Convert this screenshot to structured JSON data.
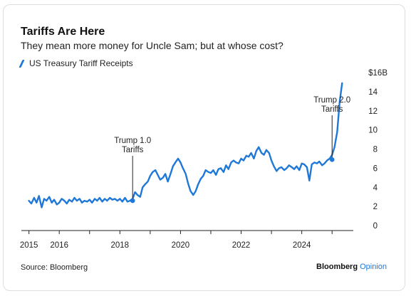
{
  "title": "Tariffs Are Here",
  "subtitle": "They mean more money for Uncle Sam; but at whose cost?",
  "source": "Source: Bloomberg",
  "brand": {
    "name": "Bloomberg",
    "suffix": "Opinion"
  },
  "colors": {
    "line": "#1f78d8",
    "axis": "#222222"
  },
  "chart_data": {
    "type": "line",
    "title": "Tariffs Are Here",
    "subtitle": "They mean more money for Uncle Sam; but at whose cost?",
    "xlabel": "",
    "ylabel": "",
    "y_unit_label": "$16B",
    "xlim": [
      2014.75,
      2025.7
    ],
    "ylim": [
      0,
      16
    ],
    "x_ticks": [
      2015,
      2016,
      2018,
      2020,
      2022,
      2024
    ],
    "x_tick_labels": [
      "2015",
      "2016",
      "2018",
      "2020",
      "2022",
      "2024"
    ],
    "y_ticks": [
      0,
      2,
      4,
      6,
      8,
      10,
      12,
      14
    ],
    "y_tick_labels": [
      "0",
      "2",
      "4",
      "6",
      "8",
      "10",
      "12",
      "14"
    ],
    "grid": false,
    "legend_position": "top-left",
    "series": [
      {
        "name": "US Treasury Tariff Receipts",
        "x": [
          2015.0,
          2015.08,
          2015.17,
          2015.25,
          2015.33,
          2015.42,
          2015.5,
          2015.58,
          2015.67,
          2015.75,
          2015.83,
          2015.92,
          2016.0,
          2016.08,
          2016.17,
          2016.25,
          2016.33,
          2016.42,
          2016.5,
          2016.58,
          2016.67,
          2016.75,
          2016.83,
          2016.92,
          2017.0,
          2017.08,
          2017.17,
          2017.25,
          2017.33,
          2017.42,
          2017.5,
          2017.58,
          2017.67,
          2017.75,
          2017.83,
          2017.92,
          2018.0,
          2018.08,
          2018.17,
          2018.25,
          2018.33,
          2018.42,
          2018.5,
          2018.58,
          2018.67,
          2018.75,
          2018.83,
          2018.92,
          2019.0,
          2019.08,
          2019.17,
          2019.25,
          2019.33,
          2019.42,
          2019.5,
          2019.58,
          2019.67,
          2019.75,
          2019.83,
          2019.92,
          2020.0,
          2020.08,
          2020.17,
          2020.25,
          2020.33,
          2020.42,
          2020.5,
          2020.58,
          2020.67,
          2020.75,
          2020.83,
          2020.92,
          2021.0,
          2021.08,
          2021.17,
          2021.25,
          2021.33,
          2021.42,
          2021.5,
          2021.58,
          2021.67,
          2021.75,
          2021.83,
          2021.92,
          2022.0,
          2022.08,
          2022.17,
          2022.25,
          2022.33,
          2022.42,
          2022.5,
          2022.58,
          2022.67,
          2022.75,
          2022.83,
          2022.92,
          2023.0,
          2023.08,
          2023.17,
          2023.25,
          2023.33,
          2023.42,
          2023.5,
          2023.58,
          2023.67,
          2023.75,
          2023.83,
          2023.92,
          2024.0,
          2024.08,
          2024.17,
          2024.25,
          2024.33,
          2024.42,
          2024.5,
          2024.58,
          2024.67,
          2024.75,
          2024.83,
          2024.92,
          2025.0,
          2025.08,
          2025.17,
          2025.25,
          2025.33
        ],
        "y": [
          2.6,
          2.3,
          2.9,
          2.4,
          3.1,
          1.9,
          2.8,
          2.6,
          3.0,
          2.4,
          2.7,
          2.2,
          2.4,
          2.8,
          2.6,
          2.3,
          2.7,
          2.5,
          2.9,
          2.6,
          2.8,
          2.4,
          2.6,
          2.5,
          2.7,
          2.4,
          2.8,
          2.6,
          2.9,
          2.5,
          2.8,
          2.6,
          2.9,
          2.7,
          2.8,
          2.6,
          2.8,
          2.5,
          2.9,
          2.5,
          2.6,
          2.8,
          3.5,
          3.2,
          3.0,
          4.0,
          4.3,
          4.6,
          5.2,
          5.6,
          5.8,
          5.3,
          4.8,
          5.0,
          5.4,
          4.6,
          5.4,
          6.2,
          6.6,
          7.0,
          6.6,
          6.0,
          5.4,
          4.4,
          3.6,
          3.2,
          3.6,
          4.3,
          4.9,
          5.2,
          5.8,
          5.6,
          5.5,
          5.8,
          5.3,
          5.9,
          6.0,
          5.6,
          6.3,
          5.9,
          6.6,
          6.8,
          6.6,
          6.5,
          7.0,
          6.8,
          7.3,
          7.2,
          7.6,
          7.0,
          7.8,
          8.2,
          7.6,
          7.4,
          7.9,
          7.6,
          6.8,
          6.2,
          5.7,
          6.0,
          6.1,
          5.8,
          6.0,
          6.3,
          6.1,
          5.9,
          6.2,
          5.8,
          6.5,
          6.4,
          6.1,
          4.7,
          6.4,
          6.6,
          6.5,
          6.7,
          6.3,
          6.5,
          6.8,
          7.0,
          7.4,
          8.2,
          9.8,
          12.9,
          14.9
        ]
      }
    ],
    "annotations": [
      {
        "label_line1": "Trump 1.0",
        "label_line2": "Tariffs",
        "x": 2018.42,
        "y": 2.6
      },
      {
        "label_line1": "Trump 2.0",
        "label_line2": "Tariffs",
        "x": 2025.0,
        "y": 6.9
      }
    ]
  }
}
